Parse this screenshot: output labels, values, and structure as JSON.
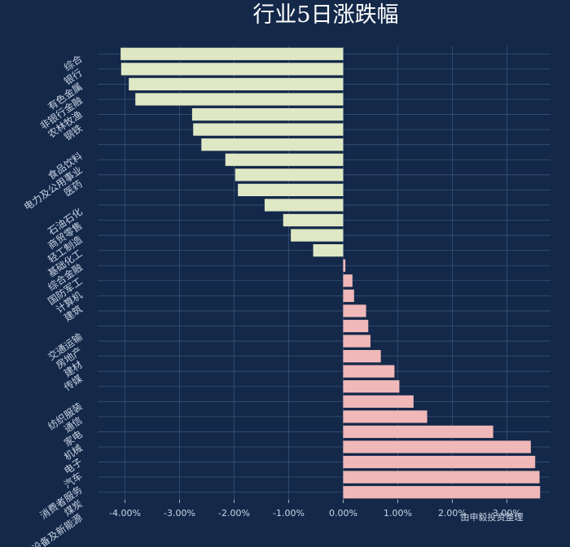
{
  "chart_data": {
    "type": "bar",
    "orientation": "horizontal",
    "title": "行业5日涨跌幅",
    "source": "由申毅投资整理",
    "categories": [
      "综合",
      "银行",
      "有色金属",
      "非银行金融",
      "农林牧渔",
      "钢铁",
      "",
      "食品饮料",
      "电力及公用事业",
      "医药",
      "",
      "石油石化",
      "商贸零售",
      "轻工制造",
      "基础化工",
      "综合金融",
      "国防军工",
      "计算机",
      "建筑",
      "",
      "交通运输",
      "房地产",
      "建材",
      "传媒",
      "",
      "纺织服装",
      "通信",
      "家电",
      "机械",
      "电子",
      "汽车",
      "消费者服务",
      "煤炭",
      "电力设备及新能源"
    ],
    "values": [
      -4.08,
      -4.07,
      -3.93,
      -3.81,
      -2.77,
      -2.75,
      -2.6,
      -2.16,
      -1.98,
      -1.93,
      -1.44,
      -1.1,
      -0.96,
      -0.55,
      0.04,
      0.17,
      0.2,
      0.42,
      0.46,
      0.5,
      0.69,
      0.94,
      1.03,
      1.29,
      1.54,
      2.75,
      3.44,
      3.52,
      3.6,
      3.61,
      null,
      null,
      null,
      null
    ],
    "bar_colors": {
      "negative": "#dfe8c4",
      "positive": "#f0b8b8"
    },
    "xlim": [
      -4.5,
      3.8
    ],
    "xticks": [
      -4,
      -3,
      -2,
      -1,
      0,
      1,
      2,
      3
    ],
    "xtick_labels": [
      "-4.00%",
      "-3.00%",
      "-2.00%",
      "-1.00%",
      "0.00%",
      "1.00%",
      "2.00%",
      "3.00%"
    ],
    "grid": true,
    "background": "#14294a"
  }
}
